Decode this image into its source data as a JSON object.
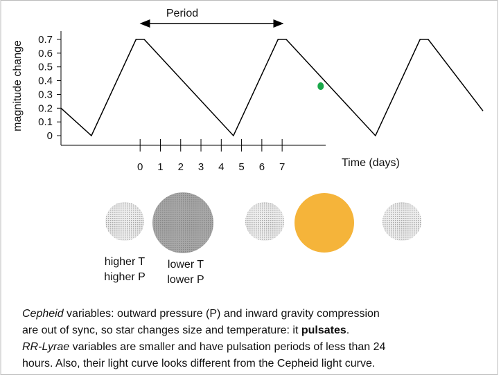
{
  "chart_data": {
    "type": "line",
    "y_label": "magnitude change",
    "x_label": "Time (days)",
    "annotation": "Period",
    "x": [
      -3.9,
      -2.4,
      -0.2,
      0.2,
      4.6,
      6.8,
      7.2,
      11.6,
      13.8,
      14.2,
      16.9
    ],
    "values": [
      0.2,
      0,
      0.7,
      0.7,
      0,
      0.7,
      0.7,
      0,
      0.7,
      0.7,
      0.18
    ],
    "color": "#000000",
    "point": {
      "x": 8.9,
      "value": 0.36,
      "color": "#1aa84a"
    },
    "xlim": [
      -3.9,
      16.9
    ],
    "ylim": [
      -0.07,
      0.76
    ],
    "xticks": [
      0,
      1,
      2,
      3,
      4,
      5,
      6,
      7
    ],
    "yticks": [
      0,
      0.1,
      0.2,
      0.3,
      0.4,
      0.5,
      0.6,
      0.7
    ]
  },
  "stars": {
    "higher": [
      "higher T",
      "higher P"
    ],
    "lower": [
      "lower T",
      "lower P"
    ]
  },
  "caption": [
    [
      {
        "text": "Cepheid",
        "style": "italic"
      },
      {
        "text": " variables: outward pressure (P) and inward gravity compression",
        "style": "normal"
      }
    ],
    [
      {
        "text": "are out of sync, so star changes size and temperature: it ",
        "style": "normal"
      },
      {
        "text": "pulsates",
        "style": "bold"
      },
      {
        "text": ".",
        "style": "normal"
      }
    ],
    [
      {
        "text": "RR-Lyrae",
        "style": "italic"
      },
      {
        "text": " variables are smaller and have pulsation periods of less than 24",
        "style": "normal"
      }
    ],
    [
      {
        "text": "hours. Also, their light curve looks different from the Cepheid light curve.",
        "style": "normal"
      }
    ]
  ]
}
